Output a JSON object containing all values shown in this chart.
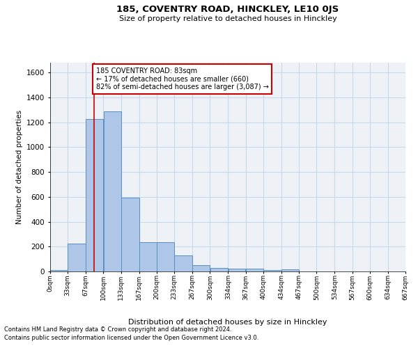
{
  "title": "185, COVENTRY ROAD, HINCKLEY, LE10 0JS",
  "subtitle": "Size of property relative to detached houses in Hinckley",
  "xlabel": "Distribution of detached houses by size in Hinckley",
  "ylabel": "Number of detached properties",
  "footnote1": "Contains HM Land Registry data © Crown copyright and database right 2024.",
  "footnote2": "Contains public sector information licensed under the Open Government Licence v3.0.",
  "bar_color": "#aec6e8",
  "bar_edge_color": "#5a8fc2",
  "grid_color": "#c8d8e8",
  "background_color": "#eef2f7",
  "vline_x": 83,
  "vline_color": "#cc0000",
  "annotation_text": "185 COVENTRY ROAD: 83sqm\n← 17% of detached houses are smaller (660)\n82% of semi-detached houses are larger (3,087) →",
  "annotation_box_color": "#ffffff",
  "annotation_box_edge": "#cc0000",
  "bins": [
    0,
    33,
    67,
    100,
    133,
    167,
    200,
    233,
    267,
    300,
    334,
    367,
    400,
    434,
    467,
    500,
    534,
    567,
    600,
    634,
    667
  ],
  "bar_heights": [
    10,
    225,
    1225,
    1290,
    595,
    235,
    235,
    130,
    50,
    30,
    25,
    25,
    10,
    15,
    0,
    0,
    0,
    0,
    0,
    0
  ],
  "ylim": [
    0,
    1680
  ],
  "xlim": [
    0,
    667
  ],
  "yticks": [
    0,
    200,
    400,
    600,
    800,
    1000,
    1200,
    1400,
    1600
  ]
}
